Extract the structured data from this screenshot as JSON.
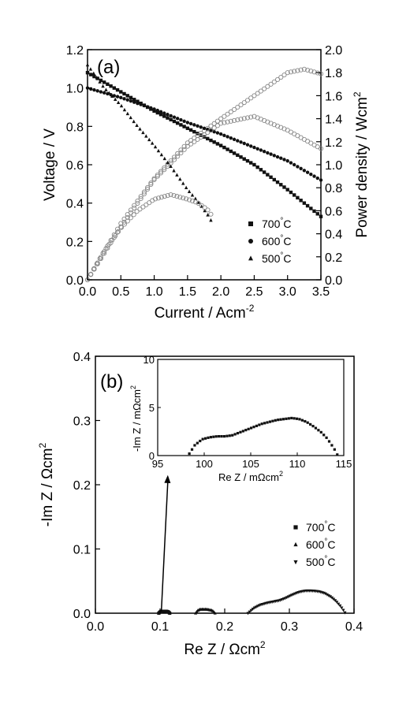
{
  "chart_data": [
    {
      "panel": "(a)",
      "type": "line",
      "xlabel": "Current / Acm",
      "xlabel_sup": "-2",
      "ylabel": "Voltage / V",
      "y2label": "Power density / Wcm",
      "y2label_sup": "2",
      "xlim": [
        0.0,
        3.5
      ],
      "ylim": [
        0.0,
        1.2
      ],
      "y2lim": [
        0.0,
        2.0
      ],
      "xticks": [
        "0.0",
        "0.5",
        "1.0",
        "1.5",
        "2.0",
        "2.5",
        "3.0",
        "3.5"
      ],
      "yticks": [
        "0.0",
        "0.2",
        "0.4",
        "0.6",
        "0.8",
        "1.0",
        "1.2"
      ],
      "y2ticks": [
        "0.0",
        "0.2",
        "0.4",
        "0.6",
        "0.8",
        "1.0",
        "1.2",
        "1.4",
        "1.6",
        "1.8",
        "2.0"
      ],
      "legend_position": "bottom-right",
      "series": [
        {
          "name": "700",
          "unit": "°C",
          "symbol": "square",
          "voltage": {
            "x": [
              0.0,
              0.5,
              1.0,
              1.5,
              2.0,
              2.5,
              3.0,
              3.5
            ],
            "y": [
              1.08,
              0.98,
              0.88,
              0.79,
              0.7,
              0.6,
              0.47,
              0.33
            ]
          },
          "power": {
            "x": [
              0.0,
              0.5,
              1.0,
              1.5,
              2.0,
              2.5,
              3.0,
              3.25,
              3.5
            ],
            "y": [
              0.0,
              0.49,
              0.88,
              1.19,
              1.4,
              1.6,
              1.8,
              1.83,
              1.79
            ]
          }
        },
        {
          "name": "600",
          "unit": "°C",
          "symbol": "circle",
          "voltage": {
            "x": [
              0.0,
              0.5,
              1.0,
              1.5,
              2.0,
              2.5,
              3.0,
              3.5
            ],
            "y": [
              1.0,
              0.95,
              0.89,
              0.82,
              0.76,
              0.69,
              0.62,
              0.52
            ]
          },
          "power": {
            "x": [
              0.0,
              0.5,
              1.0,
              1.5,
              2.0,
              2.5,
              3.0,
              3.5
            ],
            "y": [
              0.0,
              0.46,
              0.87,
              1.16,
              1.36,
              1.42,
              1.3,
              1.14
            ]
          }
        },
        {
          "name": "500",
          "unit": "°C",
          "symbol": "triangle",
          "voltage": {
            "x": [
              0.0,
              0.25,
              0.5,
              0.75,
              1.0,
              1.25,
              1.5,
              1.65,
              1.8,
              1.85
            ],
            "y": [
              1.12,
              1.0,
              0.91,
              0.8,
              0.7,
              0.59,
              0.47,
              0.41,
              0.34,
              0.31
            ]
          },
          "power": {
            "x": [
              0.0,
              0.25,
              0.5,
              0.75,
              1.0,
              1.25,
              1.5,
              1.65,
              1.8,
              1.85
            ],
            "y": [
              0.0,
              0.25,
              0.45,
              0.6,
              0.7,
              0.74,
              0.7,
              0.67,
              0.61,
              0.57
            ]
          }
        }
      ]
    },
    {
      "panel": "(b)",
      "type": "scatter",
      "xlabel": "Re Z / Ωcm",
      "xlabel_sup": "2",
      "ylabel": "-Im Z / Ωcm",
      "ylabel_sup": "2",
      "xlim": [
        0.0,
        0.4
      ],
      "ylim": [
        0.0,
        0.4
      ],
      "xticks": [
        "0.0",
        "0.1",
        "0.2",
        "0.3",
        "0.4"
      ],
      "yticks": [
        "0.0",
        "0.1",
        "0.2",
        "0.3",
        "0.4"
      ],
      "legend_position": "right",
      "series": [
        {
          "name": "700",
          "unit": "°C",
          "symbol": "square",
          "x": [
            0.098,
            0.1,
            0.103,
            0.106,
            0.11,
            0.113,
            0.115
          ],
          "y": [
            0.0,
            0.002,
            0.003,
            0.003,
            0.003,
            0.002,
            0.0
          ]
        },
        {
          "name": "600",
          "unit": "°C",
          "symbol": "triangle-up",
          "x": [
            0.155,
            0.158,
            0.162,
            0.167,
            0.172,
            0.177,
            0.181,
            0.185
          ],
          "y": [
            0.0,
            0.004,
            0.006,
            0.006,
            0.006,
            0.005,
            0.004,
            0.0
          ]
        },
        {
          "name": "500",
          "unit": "°C",
          "symbol": "triangle-down",
          "x": [
            0.236,
            0.245,
            0.255,
            0.265,
            0.275,
            0.285,
            0.295,
            0.305,
            0.315,
            0.325,
            0.335,
            0.345,
            0.355,
            0.365,
            0.372,
            0.38,
            0.386
          ],
          "y": [
            0.0,
            0.008,
            0.013,
            0.016,
            0.018,
            0.02,
            0.024,
            0.029,
            0.033,
            0.035,
            0.035,
            0.034,
            0.031,
            0.025,
            0.019,
            0.01,
            0.001
          ]
        }
      ],
      "arrow": {
        "from": [
          0.102,
          0.003
        ],
        "to": [
          0.112,
          0.215
        ]
      },
      "inset": {
        "xlabel": "Re Z / mΩcm",
        "xlabel_sup": "2",
        "ylabel": "-Im Z / mΩcm",
        "ylabel_sup": "2",
        "xlim": [
          95,
          115
        ],
        "ylim": [
          0,
          10
        ],
        "xticks": [
          "95",
          "100",
          "105",
          "110",
          "115"
        ],
        "yticks": [
          "0",
          "5",
          "10"
        ],
        "x": [
          98.4,
          99.0,
          99.8,
          100.6,
          101.4,
          102.2,
          103.0,
          103.8,
          104.6,
          105.4,
          106.2,
          107.0,
          107.8,
          108.6,
          109.4,
          110.2,
          111.0,
          111.8,
          112.6,
          113.2,
          113.7,
          114.1,
          114.3
        ],
        "y": [
          0.2,
          1.1,
          1.7,
          1.9,
          2.0,
          2.0,
          2.1,
          2.4,
          2.7,
          3.0,
          3.3,
          3.5,
          3.7,
          3.8,
          3.9,
          3.8,
          3.5,
          3.0,
          2.4,
          1.8,
          1.1,
          0.5,
          0.1
        ]
      }
    }
  ]
}
